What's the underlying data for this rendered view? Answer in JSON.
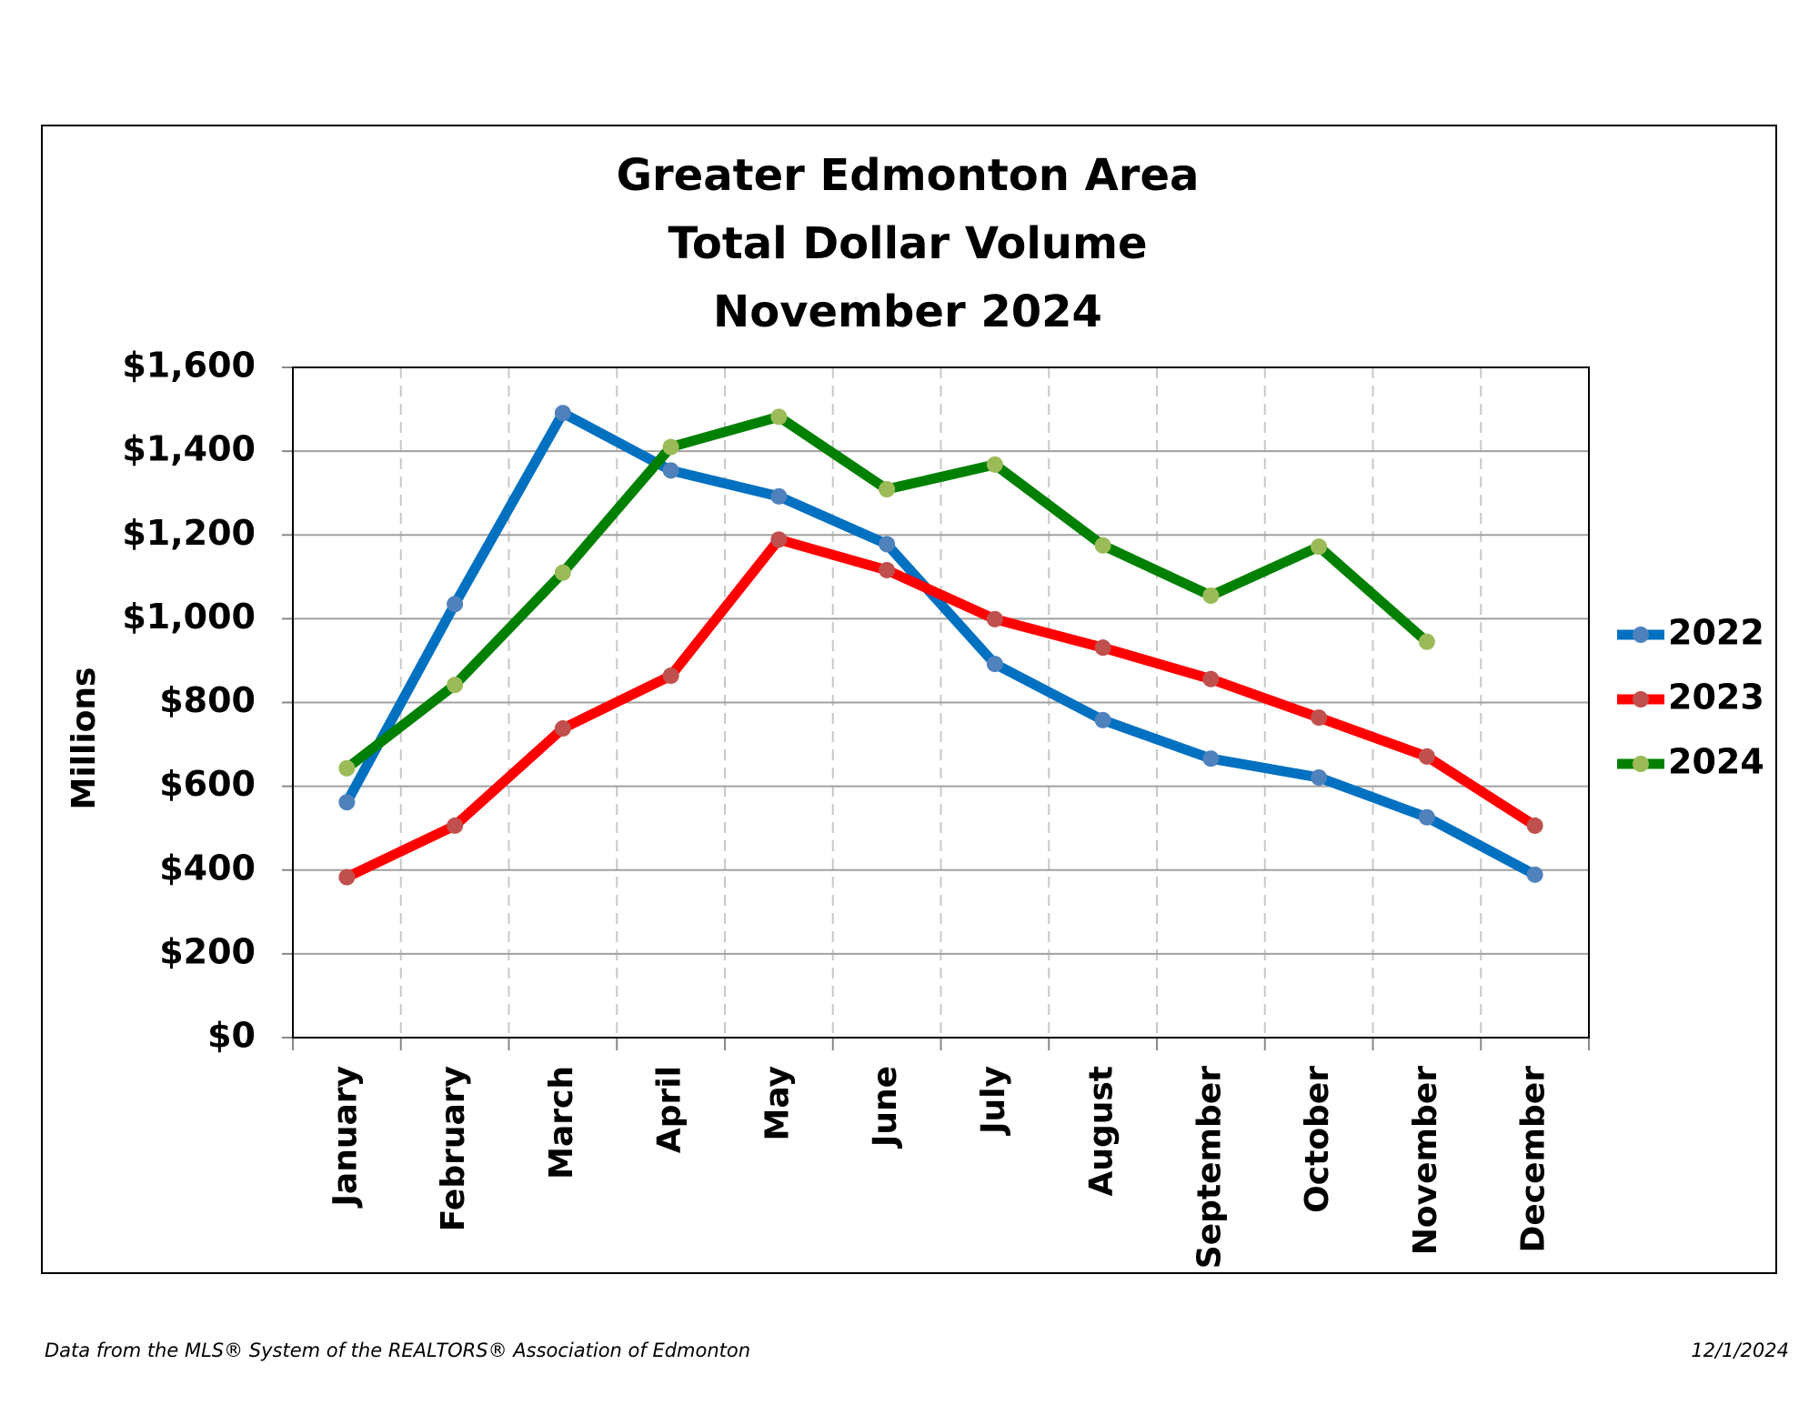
{
  "chart_data": {
    "type": "line",
    "title": [
      "Greater Edmonton Area",
      "Total Dollar Volume",
      "November 2024"
    ],
    "y_label": "Millions",
    "categories": [
      "January",
      "February",
      "March",
      "April",
      "May",
      "June",
      "July",
      "August",
      "September",
      "October",
      "November",
      "December"
    ],
    "series": [
      {
        "name": "2022",
        "color": "#0070c0",
        "marker_color": "#4f81bd",
        "values": [
          562,
          1035,
          1491,
          1354,
          1292,
          1178,
          892,
          758,
          666,
          621,
          526,
          389
        ]
      },
      {
        "name": "2023",
        "color": "#ff0000",
        "marker_color": "#c0504d",
        "values": [
          383,
          506,
          738,
          864,
          1189,
          1116,
          999,
          931,
          856,
          764,
          671,
          506
        ]
      },
      {
        "name": "2024",
        "color": "#008000",
        "marker_color": "#9bbb59",
        "values": [
          643,
          842,
          1110,
          1410,
          1482,
          1309,
          1368,
          1175,
          1055,
          1172,
          945,
          null
        ]
      }
    ],
    "ylim": [
      0,
      1600
    ],
    "yticks": [
      {
        "value": 0,
        "label": "$0"
      },
      {
        "value": 200,
        "label": "$200"
      },
      {
        "value": 400,
        "label": "$400"
      },
      {
        "value": 600,
        "label": "$600"
      },
      {
        "value": 800,
        "label": "$800"
      },
      {
        "value": 1000,
        "label": "$1,000"
      },
      {
        "value": 1200,
        "label": "$1,200"
      },
      {
        "value": 1400,
        "label": "$1,400"
      },
      {
        "value": 1600,
        "label": "$1,600"
      }
    ],
    "grid": true,
    "legend": "right",
    "footer_source": "Data from the MLS® System of the REALTORS® Association of Edmonton",
    "footer_date": "12/1/2024"
  }
}
